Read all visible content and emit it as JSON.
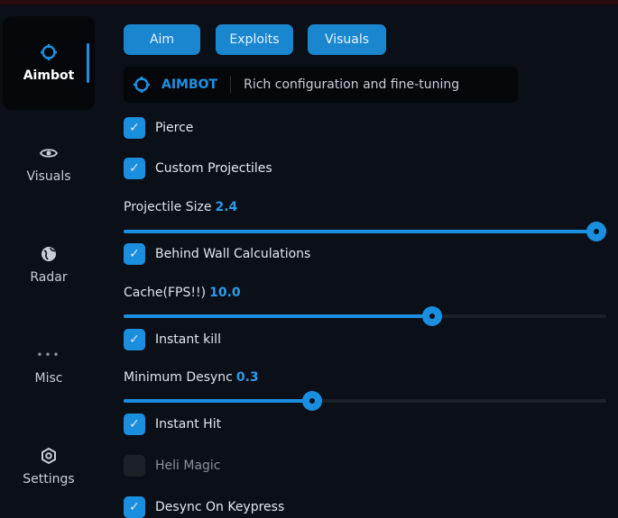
{
  "colors": {
    "accent": "#1a8fe0",
    "background": "#0b0f17"
  },
  "sidebar": {
    "items": [
      {
        "label": "Aimbot",
        "icon": "crosshair-icon",
        "active": true
      },
      {
        "label": "Visuals",
        "icon": "eye-icon"
      },
      {
        "label": "Radar",
        "icon": "globe-icon"
      },
      {
        "label": "Misc",
        "icon": "dots-icon"
      },
      {
        "label": "Settings",
        "icon": "gear-icon"
      }
    ]
  },
  "tabs": [
    {
      "label": "Aim"
    },
    {
      "label": "Exploits"
    },
    {
      "label": "Visuals"
    }
  ],
  "header": {
    "title": "AIMBOT",
    "description": "Rich configuration and fine-tuning"
  },
  "options": {
    "pierce": {
      "label": "Pierce",
      "checked": true
    },
    "custom_projectiles": {
      "label": "Custom Projectiles",
      "checked": true
    },
    "projectile_size": {
      "label": "Projectile Size",
      "value": "2.4",
      "fraction": 1.0
    },
    "behind_wall": {
      "label": "Behind Wall Calculations",
      "checked": true
    },
    "cache": {
      "label": "Cache(FPS!!)",
      "value": "10.0",
      "fraction": 0.64
    },
    "instant_kill": {
      "label": "Instant kill",
      "checked": true
    },
    "min_desync": {
      "label": "Minimum Desync",
      "value": "0.3",
      "fraction": 0.39
    },
    "instant_hit": {
      "label": "Instant Hit",
      "checked": true
    },
    "heli_magic": {
      "label": "Heli Magic",
      "checked": false
    },
    "desync_keypress": {
      "label": "Desync On Keypress",
      "checked": true
    }
  }
}
